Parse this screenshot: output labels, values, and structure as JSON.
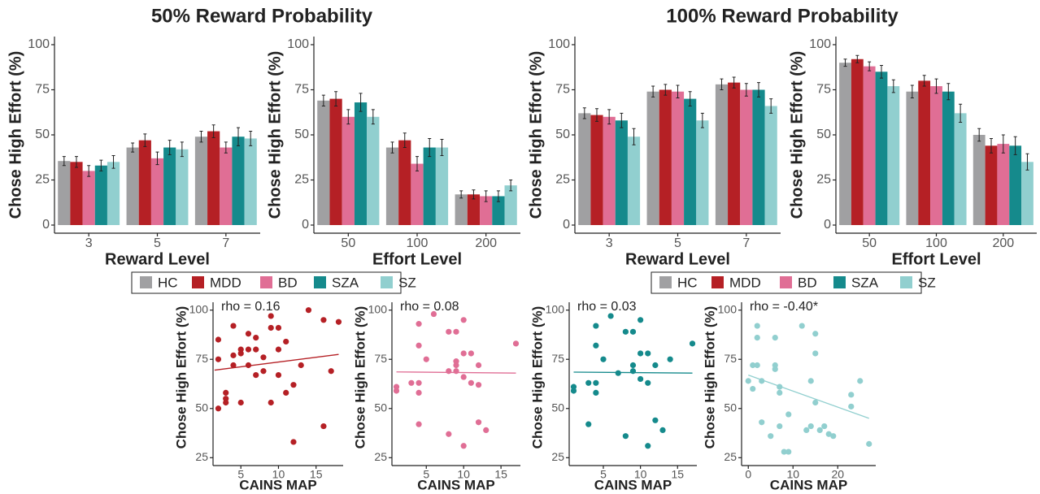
{
  "panel_titles": [
    "50% Reward Probability",
    "100% Reward Probability"
  ],
  "chart_data": [
    {
      "type": "bar",
      "x_label": "Reward Level",
      "y_label": "Chose High Effort (%)",
      "categories": [
        "3",
        "5",
        "7"
      ],
      "ylim": [
        -4.5,
        104.5
      ],
      "yticks": [
        0,
        25,
        50,
        75,
        100
      ],
      "series": [
        {
          "name": "HC",
          "color": "#a0a0a2",
          "values": [
            35.5,
            43,
            49
          ],
          "errors": [
            2.5,
            2.5,
            3
          ]
        },
        {
          "name": "MDD",
          "color": "#b52025",
          "values": [
            35,
            47,
            52
          ],
          "errors": [
            3,
            3.5,
            3.5
          ]
        },
        {
          "name": "BD",
          "color": "#e06e95",
          "values": [
            30,
            37,
            43
          ],
          "errors": [
            3,
            3.5,
            3
          ]
        },
        {
          "name": "SZA",
          "color": "#158a8c",
          "values": [
            33,
            43,
            49
          ],
          "errors": [
            3,
            4,
            5
          ]
        },
        {
          "name": "SZ",
          "color": "#91cfcf",
          "values": [
            35,
            42,
            48
          ],
          "errors": [
            3.5,
            4,
            4
          ]
        }
      ]
    },
    {
      "type": "bar",
      "x_label": "Effort Level",
      "y_label": "Chose High Effort (%)",
      "categories": [
        "50",
        "100",
        "200"
      ],
      "ylim": [
        -4.5,
        104.5
      ],
      "yticks": [
        0,
        25,
        50,
        75,
        100
      ],
      "series": [
        {
          "name": "HC",
          "color": "#a0a0a2",
          "values": [
            69,
            43,
            17
          ],
          "errors": [
            3,
            3,
            2
          ]
        },
        {
          "name": "MDD",
          "color": "#b52025",
          "values": [
            70,
            47,
            17
          ],
          "errors": [
            4,
            4,
            2.5
          ]
        },
        {
          "name": "BD",
          "color": "#e06e95",
          "values": [
            60,
            34,
            16
          ],
          "errors": [
            4,
            4,
            3
          ]
        },
        {
          "name": "SZA",
          "color": "#158a8c",
          "values": [
            68,
            43,
            16
          ],
          "errors": [
            5,
            5,
            3
          ]
        },
        {
          "name": "SZ",
          "color": "#91cfcf",
          "values": [
            60,
            43,
            22
          ],
          "errors": [
            4,
            4.5,
            3
          ]
        }
      ]
    },
    {
      "type": "bar",
      "x_label": "Reward Level",
      "y_label": "Chose High Effort (%)",
      "categories": [
        "3",
        "5",
        "7"
      ],
      "ylim": [
        -4.5,
        104.5
      ],
      "yticks": [
        0,
        25,
        50,
        75,
        100
      ],
      "series": [
        {
          "name": "HC",
          "color": "#a0a0a2",
          "values": [
            62,
            74,
            78
          ],
          "errors": [
            3,
            3,
            3
          ]
        },
        {
          "name": "MDD",
          "color": "#b52025",
          "values": [
            61,
            75,
            79
          ],
          "errors": [
            3.5,
            3,
            3
          ]
        },
        {
          "name": "BD",
          "color": "#e06e95",
          "values": [
            60,
            74,
            75
          ],
          "errors": [
            4,
            3.5,
            3.5
          ]
        },
        {
          "name": "SZA",
          "color": "#158a8c",
          "values": [
            58,
            70,
            75
          ],
          "errors": [
            4,
            4,
            4
          ]
        },
        {
          "name": "SZ",
          "color": "#91cfcf",
          "values": [
            49,
            58,
            66
          ],
          "errors": [
            4.5,
            4,
            4
          ]
        }
      ]
    },
    {
      "type": "bar",
      "x_label": "Effort Level",
      "y_label": "Chose High Effort (%)",
      "categories": [
        "50",
        "100",
        "200"
      ],
      "ylim": [
        -4.5,
        104.5
      ],
      "yticks": [
        0,
        25,
        50,
        75,
        100
      ],
      "series": [
        {
          "name": "HC",
          "color": "#a0a0a2",
          "values": [
            90,
            74,
            50
          ],
          "errors": [
            2,
            3.5,
            3.5
          ]
        },
        {
          "name": "MDD",
          "color": "#b52025",
          "values": [
            92,
            80,
            44
          ],
          "errors": [
            2,
            3,
            4
          ]
        },
        {
          "name": "BD",
          "color": "#e06e95",
          "values": [
            88,
            77,
            45
          ],
          "errors": [
            2.5,
            4,
            5
          ]
        },
        {
          "name": "SZA",
          "color": "#158a8c",
          "values": [
            85,
            74,
            44
          ],
          "errors": [
            3.5,
            4.5,
            5
          ]
        },
        {
          "name": "SZ",
          "color": "#91cfcf",
          "values": [
            77,
            62,
            35
          ],
          "errors": [
            3.5,
            5,
            4.5
          ]
        }
      ]
    },
    {
      "type": "scatter",
      "annotation": "rho = 0.16",
      "x_label": "CAINS MAP",
      "y_label": "Chose High Effort (%)",
      "color": "#b52025",
      "xlim": [
        1.3,
        18.6
      ],
      "ylim": [
        21,
        104
      ],
      "xticks": [
        5,
        10,
        15
      ],
      "yticks": [
        25,
        50,
        75,
        100
      ],
      "x": [
        2,
        2,
        2,
        3,
        3,
        3,
        4,
        4,
        4,
        5,
        5,
        5,
        6,
        6,
        6,
        7,
        7,
        7,
        8,
        8,
        9,
        9,
        9,
        10,
        10,
        10,
        11,
        11,
        12,
        12,
        13,
        14,
        16,
        16,
        17,
        18
      ],
      "y": [
        85,
        75,
        50,
        58,
        55,
        53,
        92,
        72,
        77,
        80,
        78,
        53,
        88,
        80,
        72,
        86,
        80,
        67,
        69,
        76,
        97,
        91,
        53,
        91,
        80,
        67,
        84,
        58,
        62,
        33,
        72,
        100,
        95,
        41,
        69,
        94
      ],
      "trend_x": [
        1.5,
        18
      ],
      "trend_y": [
        69.5,
        77.5
      ]
    },
    {
      "type": "scatter",
      "annotation": "rho = 0.08",
      "x_label": "CAINS MAP",
      "y_label": "Chose High Effort (%)",
      "color": "#e06e95",
      "xlim": [
        0.4,
        17.6
      ],
      "ylim": [
        21,
        104
      ],
      "xticks": [
        5,
        10,
        15
      ],
      "yticks": [
        25,
        50,
        75,
        100
      ],
      "x": [
        1,
        1,
        3,
        4,
        4,
        4,
        4,
        4,
        5,
        6,
        8,
        8,
        8,
        9,
        9,
        9,
        9,
        10,
        10,
        10,
        10,
        11,
        11,
        12,
        12,
        12,
        13,
        17
      ],
      "y": [
        61,
        59,
        63,
        42,
        63,
        58,
        93,
        82,
        75,
        98,
        89,
        69,
        37,
        89,
        74,
        72,
        69,
        95,
        78,
        66,
        31,
        78,
        63,
        72,
        43,
        62,
        39,
        83
      ],
      "trend_x": [
        1,
        17
      ],
      "trend_y": [
        68.6,
        68
      ]
    },
    {
      "type": "scatter",
      "annotation": "rho = 0.03",
      "x_label": "CAINS MAP",
      "y_label": "Chose High Effort (%)",
      "color": "#158a8c",
      "xlim": [
        0.4,
        17.6
      ],
      "ylim": [
        21,
        104
      ],
      "xticks": [
        5,
        10,
        15
      ],
      "yticks": [
        25,
        50,
        75,
        100
      ],
      "x": [
        1,
        1,
        3,
        3,
        4,
        4,
        4,
        4,
        5,
        6,
        7,
        8,
        8,
        9,
        9,
        9,
        10,
        10,
        10,
        11,
        11,
        11,
        12,
        12,
        13,
        14,
        17
      ],
      "y": [
        61,
        59,
        42,
        63,
        63,
        58,
        92,
        82,
        75,
        97,
        68,
        89,
        36,
        89,
        72,
        69,
        95,
        78,
        65,
        31,
        78,
        63,
        72,
        44,
        39,
        75,
        83
      ],
      "trend_x": [
        1,
        17
      ],
      "trend_y": [
        68.5,
        68
      ]
    },
    {
      "type": "scatter",
      "annotation": "rho = -0.40*",
      "x_label": "CAINS MAP",
      "y_label": "Chose High Effort (%)",
      "color": "#91cfcf",
      "xlim": [
        -1.5,
        28.5
      ],
      "ylim": [
        21,
        104
      ],
      "xticks": [
        0,
        10,
        20
      ],
      "yticks": [
        25,
        50,
        75,
        100
      ],
      "x": [
        0,
        1,
        1,
        2,
        2,
        2,
        3,
        3,
        5,
        6,
        6,
        6,
        7,
        7,
        7,
        8,
        9,
        9,
        12,
        13,
        14,
        14,
        15,
        15,
        15,
        16,
        17,
        18,
        19,
        23,
        23,
        25,
        27
      ],
      "y": [
        64,
        72,
        60,
        92,
        86,
        72,
        64,
        43,
        36,
        86,
        72,
        70,
        58,
        61,
        41,
        28,
        47,
        28,
        92,
        39,
        41,
        64,
        88,
        78,
        53,
        39,
        41,
        37,
        36,
        57,
        51,
        64,
        32
      ],
      "trend_x": [
        0,
        27
      ],
      "trend_y": [
        67,
        45
      ]
    }
  ]
}
